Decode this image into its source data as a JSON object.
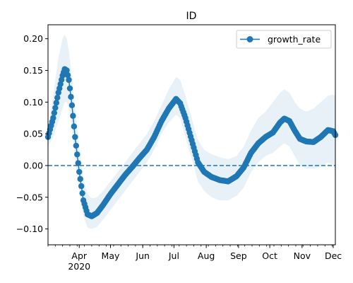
{
  "chart_data": {
    "type": "line",
    "title": "ID",
    "xlabel": "",
    "ylabel": "",
    "x_axis": {
      "range": [
        "2020-03-02",
        "2020-12-03"
      ],
      "month_ticks": [
        {
          "date": "2020-04-01",
          "label": "Apr"
        },
        {
          "date": "2020-05-01",
          "label": "May"
        },
        {
          "date": "2020-06-01",
          "label": "Jun"
        },
        {
          "date": "2020-07-01",
          "label": "Jul"
        },
        {
          "date": "2020-08-01",
          "label": "Aug"
        },
        {
          "date": "2020-09-01",
          "label": "Sep"
        },
        {
          "date": "2020-10-01",
          "label": "Oct"
        },
        {
          "date": "2020-11-01",
          "label": "Nov"
        },
        {
          "date": "2020-12-01",
          "label": "Dec"
        }
      ],
      "year_label": "2020"
    },
    "ylim": [
      -0.125,
      0.222
    ],
    "y_ticks": [
      -0.1,
      -0.05,
      0.0,
      0.05,
      0.1,
      0.15,
      0.2
    ],
    "y_tick_labels": [
      "−0.10",
      "−0.05",
      "0.00",
      "0.05",
      "0.10",
      "0.15",
      "0.20"
    ],
    "reference_line": {
      "y": 0.0,
      "style": "dashed"
    },
    "grid": false,
    "legend": {
      "placement": "top-right",
      "entries": [
        "growth_rate"
      ]
    },
    "series": [
      {
        "name": "growth_rate",
        "color": "#1f77b4",
        "band_color": "#1f77b4",
        "points": [
          [
            "2020-03-02",
            0.045,
            0.03,
            0.06
          ],
          [
            "2020-03-07",
            0.075,
            0.045,
            0.11
          ],
          [
            "2020-03-12",
            0.115,
            0.07,
            0.17
          ],
          [
            "2020-03-16",
            0.142,
            0.09,
            0.2
          ],
          [
            "2020-03-18",
            0.152,
            0.1,
            0.207
          ],
          [
            "2020-03-20",
            0.15,
            0.1,
            0.2
          ],
          [
            "2020-03-22",
            0.135,
            0.09,
            0.18
          ],
          [
            "2020-03-25",
            0.095,
            0.06,
            0.14
          ],
          [
            "2020-03-28",
            0.045,
            0.01,
            0.09
          ],
          [
            "2020-04-01",
            -0.01,
            -0.04,
            0.03
          ],
          [
            "2020-04-05",
            -0.055,
            -0.08,
            -0.02
          ],
          [
            "2020-04-09",
            -0.077,
            -0.098,
            -0.045
          ],
          [
            "2020-04-13",
            -0.08,
            -0.1,
            -0.052
          ],
          [
            "2020-04-18",
            -0.075,
            -0.097,
            -0.05
          ],
          [
            "2020-04-24",
            -0.062,
            -0.085,
            -0.04
          ],
          [
            "2020-05-01",
            -0.045,
            -0.07,
            -0.025
          ],
          [
            "2020-05-08",
            -0.03,
            -0.055,
            -0.01
          ],
          [
            "2020-05-15",
            -0.015,
            -0.04,
            0.005
          ],
          [
            "2020-05-22",
            -0.002,
            -0.025,
            0.02
          ],
          [
            "2020-05-29",
            0.012,
            -0.01,
            0.035
          ],
          [
            "2020-06-05",
            0.025,
            0.005,
            0.05
          ],
          [
            "2020-06-12",
            0.045,
            0.025,
            0.07
          ],
          [
            "2020-06-19",
            0.07,
            0.05,
            0.095
          ],
          [
            "2020-06-26",
            0.09,
            0.068,
            0.12
          ],
          [
            "2020-07-03",
            0.105,
            0.08,
            0.14
          ],
          [
            "2020-07-07",
            0.098,
            0.075,
            0.135
          ],
          [
            "2020-07-12",
            0.075,
            0.045,
            0.11
          ],
          [
            "2020-07-18",
            0.04,
            0.01,
            0.075
          ],
          [
            "2020-07-24",
            0.005,
            -0.025,
            0.04
          ],
          [
            "2020-07-30",
            -0.01,
            -0.04,
            0.025
          ],
          [
            "2020-08-06",
            -0.018,
            -0.05,
            0.018
          ],
          [
            "2020-08-14",
            -0.023,
            -0.055,
            0.013
          ],
          [
            "2020-08-22",
            -0.025,
            -0.055,
            0.01
          ],
          [
            "2020-08-30",
            -0.017,
            -0.048,
            0.015
          ],
          [
            "2020-09-06",
            -0.003,
            -0.035,
            0.03
          ],
          [
            "2020-09-13",
            0.02,
            -0.01,
            0.055
          ],
          [
            "2020-09-20",
            0.035,
            0.005,
            0.075
          ],
          [
            "2020-09-27",
            0.045,
            0.015,
            0.085
          ],
          [
            "2020-10-04",
            0.052,
            0.02,
            0.1
          ],
          [
            "2020-10-11",
            0.068,
            0.03,
            0.115
          ],
          [
            "2020-10-15",
            0.074,
            0.035,
            0.12
          ],
          [
            "2020-10-20",
            0.07,
            0.03,
            0.115
          ],
          [
            "2020-10-25",
            0.055,
            0.015,
            0.1
          ],
          [
            "2020-10-30",
            0.042,
            0.0,
            0.09
          ],
          [
            "2020-11-05",
            0.038,
            -0.005,
            0.085
          ],
          [
            "2020-11-12",
            0.037,
            -0.005,
            0.09
          ],
          [
            "2020-11-19",
            0.045,
            -0.002,
            0.1
          ],
          [
            "2020-11-26",
            0.056,
            0.005,
            0.11
          ],
          [
            "2020-12-01",
            0.054,
            0.0,
            0.112
          ],
          [
            "2020-12-03",
            0.048,
            -0.01,
            0.11
          ]
        ]
      }
    ]
  }
}
